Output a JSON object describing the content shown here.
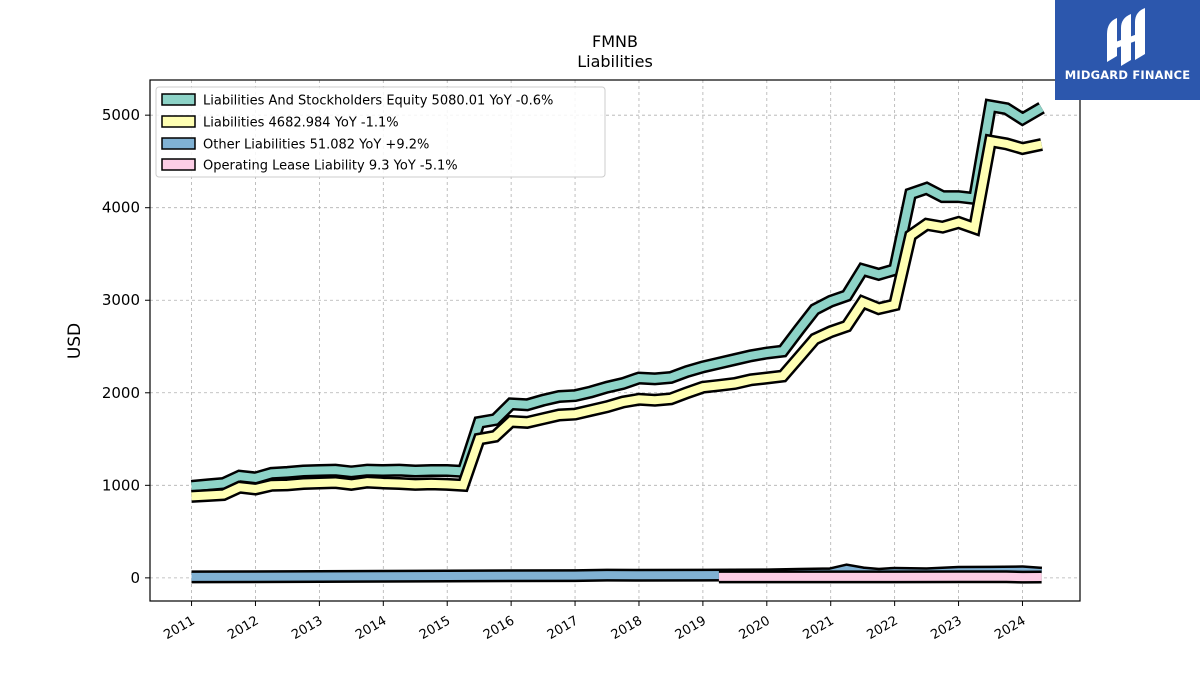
{
  "logo": {
    "text": "MIDGARD FINANCE",
    "icon": "midgard-logo-icon",
    "background": "#2c57ad"
  },
  "chart_data": {
    "type": "line",
    "title": "FMNB",
    "subtitle": "Liabilities",
    "ylabel": "USD",
    "xlabel": "",
    "ylim": [
      -250,
      5380
    ],
    "xlim": [
      2010.35,
      2024.9
    ],
    "yticks": [
      0,
      1000,
      2000,
      3000,
      4000,
      5000
    ],
    "xticks": [
      "2011",
      "2012",
      "2013",
      "2014",
      "2015",
      "2016",
      "2017",
      "2018",
      "2019",
      "2020",
      "2021",
      "2022",
      "2023",
      "2024"
    ],
    "grid": true,
    "legend_position": "top-left",
    "series": [
      {
        "name": "Liabilities And Stockholders Equity",
        "legend": "Liabilities And Stockholders Equity  5080.01 YoY -0.6%",
        "color": "#8dd3c7",
        "x": [
          2011.0,
          2011.25,
          2011.5,
          2011.75,
          2012.0,
          2012.25,
          2012.5,
          2012.75,
          2013.0,
          2013.25,
          2013.5,
          2013.75,
          2014.0,
          2014.25,
          2014.5,
          2014.75,
          2015.0,
          2015.25,
          2015.5,
          2015.75,
          2016.0,
          2016.25,
          2016.5,
          2016.75,
          2017.0,
          2017.25,
          2017.5,
          2017.75,
          2018.0,
          2018.25,
          2018.5,
          2018.75,
          2019.0,
          2019.25,
          2019.5,
          2019.75,
          2020.0,
          2020.25,
          2020.5,
          2020.75,
          2021.0,
          2021.25,
          2021.5,
          2021.75,
          2022.0,
          2022.25,
          2022.5,
          2022.75,
          2023.0,
          2023.25,
          2023.5,
          2023.75,
          2024.0,
          2024.3
        ],
        "y": [
          990,
          1005,
          1020,
          1100,
          1080,
          1130,
          1140,
          1155,
          1160,
          1165,
          1145,
          1165,
          1160,
          1165,
          1155,
          1160,
          1160,
          1150,
          1680,
          1710,
          1880,
          1870,
          1920,
          1960,
          1970,
          2010,
          2060,
          2100,
          2160,
          2150,
          2165,
          2230,
          2280,
          2320,
          2360,
          2400,
          2430,
          2450,
          2680,
          2900,
          2990,
          3050,
          3330,
          3280,
          3330,
          4150,
          4210,
          4120,
          4120,
          4100,
          5100,
          5070,
          4960,
          5080
        ]
      },
      {
        "name": "Liabilities",
        "legend": "Liabilities  4682.984 YoY -1.1%",
        "color": "#ffffb3",
        "x": [
          2011.0,
          2011.25,
          2011.5,
          2011.75,
          2012.0,
          2012.25,
          2012.5,
          2012.75,
          2013.0,
          2013.25,
          2013.5,
          2013.75,
          2014.0,
          2014.25,
          2014.5,
          2014.75,
          2015.0,
          2015.25,
          2015.5,
          2015.75,
          2016.0,
          2016.25,
          2016.5,
          2016.75,
          2017.0,
          2017.25,
          2017.5,
          2017.75,
          2018.0,
          2018.25,
          2018.5,
          2018.75,
          2019.0,
          2019.25,
          2019.5,
          2019.75,
          2020.0,
          2020.25,
          2020.5,
          2020.75,
          2021.0,
          2021.25,
          2021.5,
          2021.75,
          2022.0,
          2022.25,
          2022.5,
          2022.75,
          2023.0,
          2023.25,
          2023.5,
          2023.75,
          2024.0,
          2024.3
        ],
        "y": [
          880,
          890,
          900,
          980,
          960,
          1000,
          1005,
          1020,
          1025,
          1030,
          1010,
          1035,
          1025,
          1020,
          1010,
          1015,
          1010,
          1000,
          1500,
          1530,
          1690,
          1680,
          1720,
          1760,
          1770,
          1810,
          1850,
          1900,
          1930,
          1920,
          1935,
          2000,
          2060,
          2080,
          2100,
          2140,
          2160,
          2180,
          2380,
          2580,
          2660,
          2720,
          2980,
          2910,
          2950,
          3700,
          3820,
          3790,
          3840,
          3780,
          4720,
          4690,
          4640,
          4683
        ]
      },
      {
        "name": "Other Liabilities",
        "legend": "Other Liabilities  51.082 YoY +9.2%",
        "color": "#80b1d3",
        "x": [
          2011.0,
          2012.0,
          2013.0,
          2014.0,
          2015.0,
          2016.0,
          2017.0,
          2017.5,
          2018.0,
          2019.0,
          2020.0,
          2020.5,
          2021.0,
          2021.25,
          2021.5,
          2021.75,
          2022.0,
          2022.5,
          2023.0,
          2023.5,
          2024.0,
          2024.3
        ],
        "y": [
          10,
          12,
          15,
          18,
          20,
          22,
          25,
          30,
          28,
          30,
          32,
          40,
          45,
          85,
          55,
          40,
          50,
          45,
          60,
          62,
          65,
          51
        ]
      },
      {
        "name": "Operating Lease Liability",
        "legend": "Operating Lease Liability  9.3 YoY -5.1%",
        "color": "#fccde5",
        "x": [
          2019.25,
          2020.0,
          2021.0,
          2022.0,
          2023.0,
          2023.75,
          2024.0,
          2024.3
        ],
        "y": [
          10,
          10,
          10,
          10,
          12,
          11,
          8,
          9.3
        ]
      }
    ]
  }
}
